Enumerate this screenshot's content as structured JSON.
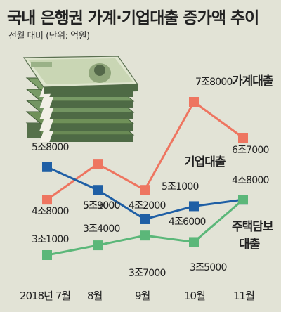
{
  "title": "국내 은행권 가계·기업대출 증가액 추이",
  "subtitle": "전월 대비 (단위: 억원)",
  "colors": {
    "background": "#e2e3d6",
    "household": "#ee7560",
    "corporate": "#1f5fa5",
    "mortgage": "#5bb779"
  },
  "icons": [
    "money-stack-illustration"
  ],
  "chart_data": {
    "type": "line",
    "categories": [
      "2018년 7월",
      "8월",
      "9월",
      "10월",
      "11월"
    ],
    "grid": false,
    "series": [
      {
        "name": "가계대출",
        "color": "#ee7560",
        "values": [
          48000,
          59000,
          51000,
          78000,
          67000
        ],
        "labels": [
          "4조8000",
          "5조9000",
          "5조1000",
          "7조8000",
          "6조7000"
        ]
      },
      {
        "name": "기업대출",
        "color": "#1f5fa5",
        "values": [
          58000,
          51000,
          42000,
          46000,
          48000
        ],
        "labels": [
          "5조8000",
          "5조1000",
          "4조2000",
          "4조6000",
          "4조8000"
        ]
      },
      {
        "name": "주택담보\n대출",
        "color": "#5bb779",
        "values": [
          31000,
          34000,
          37000,
          35000,
          48000
        ],
        "labels": [
          "3조1000",
          "3조4000",
          "3조7000",
          "3조5000",
          "4조8000"
        ]
      }
    ]
  }
}
